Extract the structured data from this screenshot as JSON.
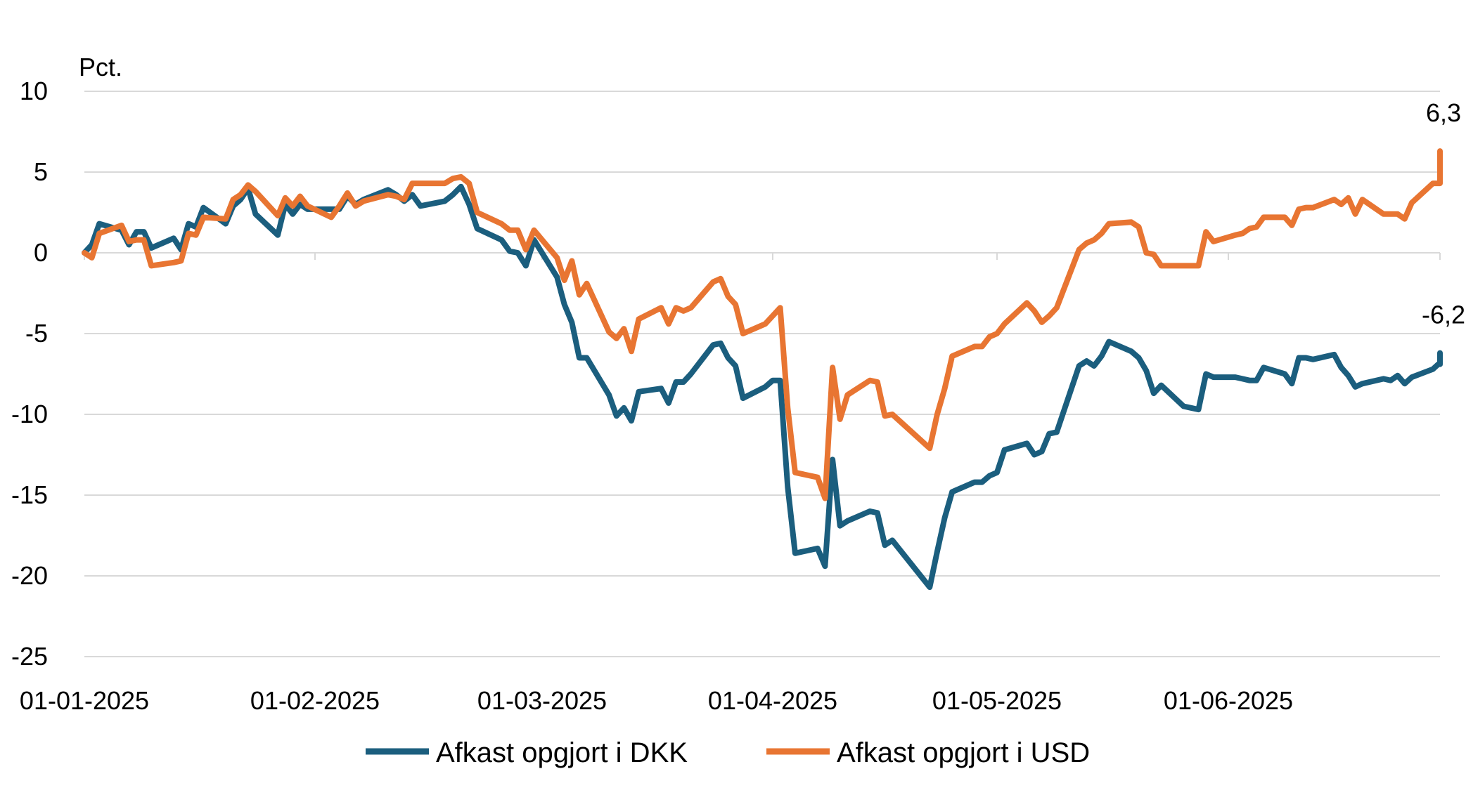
{
  "chart_data": {
    "type": "line",
    "y_unit_label": "Pct.",
    "ylim": [
      -25,
      10
    ],
    "y_ticks": [
      10,
      5,
      0,
      -5,
      -10,
      -15,
      -20,
      -25
    ],
    "x_tick_labels": [
      "01-01-2025",
      "01-02-2025",
      "01-03-2025",
      "01-04-2025",
      "01-05-2025",
      "01-06-2025"
    ],
    "x_tick_dates": [
      "2025-01-01",
      "2025-02-01",
      "2025-03-01",
      "2025-04-01",
      "2025-05-01",
      "2025-06-01"
    ],
    "x_range": [
      "2025-01-01",
      "2025-06-30"
    ],
    "grid": "horizontal",
    "legend_position": "bottom",
    "series": [
      {
        "name": "Afkast opgjort i DKK",
        "color": "#1b5e7e",
        "end_label": "-6,2",
        "points": [
          [
            "2025-01-01",
            0.0
          ],
          [
            "2025-01-02",
            0.5
          ],
          [
            "2025-01-03",
            1.8
          ],
          [
            "2025-01-06",
            1.4
          ],
          [
            "2025-01-07",
            0.5
          ],
          [
            "2025-01-08",
            1.3
          ],
          [
            "2025-01-09",
            1.3
          ],
          [
            "2025-01-10",
            0.3
          ],
          [
            "2025-01-13",
            0.9
          ],
          [
            "2025-01-14",
            0.2
          ],
          [
            "2025-01-15",
            1.8
          ],
          [
            "2025-01-16",
            1.6
          ],
          [
            "2025-01-17",
            2.8
          ],
          [
            "2025-01-20",
            1.8
          ],
          [
            "2025-01-21",
            2.9
          ],
          [
            "2025-01-22",
            3.3
          ],
          [
            "2025-01-23",
            4.0
          ],
          [
            "2025-01-24",
            2.4
          ],
          [
            "2025-01-27",
            1.1
          ],
          [
            "2025-01-28",
            3.0
          ],
          [
            "2025-01-29",
            2.4
          ],
          [
            "2025-01-30",
            3.0
          ],
          [
            "2025-01-31",
            2.7
          ],
          [
            "2025-02-03",
            2.7
          ],
          [
            "2025-02-04",
            2.7
          ],
          [
            "2025-02-05",
            3.5
          ],
          [
            "2025-02-06",
            3.0
          ],
          [
            "2025-02-07",
            3.3
          ],
          [
            "2025-02-10",
            3.9
          ],
          [
            "2025-02-11",
            3.6
          ],
          [
            "2025-02-12",
            3.2
          ],
          [
            "2025-02-13",
            3.6
          ],
          [
            "2025-02-14",
            2.9
          ],
          [
            "2025-02-17",
            3.2
          ],
          [
            "2025-02-18",
            3.6
          ],
          [
            "2025-02-19",
            4.1
          ],
          [
            "2025-02-20",
            3.0
          ],
          [
            "2025-02-21",
            1.5
          ],
          [
            "2025-02-24",
            0.8
          ],
          [
            "2025-02-25",
            0.1
          ],
          [
            "2025-02-26",
            0.0
          ],
          [
            "2025-02-27",
            -0.8
          ],
          [
            "2025-02-28",
            0.8
          ],
          [
            "2025-03-03",
            -1.5
          ],
          [
            "2025-03-04",
            -3.2
          ],
          [
            "2025-03-05",
            -4.3
          ],
          [
            "2025-03-06",
            -6.5
          ],
          [
            "2025-03-07",
            -6.5
          ],
          [
            "2025-03-10",
            -8.8
          ],
          [
            "2025-03-11",
            -10.1
          ],
          [
            "2025-03-12",
            -9.6
          ],
          [
            "2025-03-13",
            -10.4
          ],
          [
            "2025-03-14",
            -8.6
          ],
          [
            "2025-03-17",
            -8.4
          ],
          [
            "2025-03-18",
            -9.3
          ],
          [
            "2025-03-19",
            -8.0
          ],
          [
            "2025-03-20",
            -8.0
          ],
          [
            "2025-03-21",
            -7.5
          ],
          [
            "2025-03-24",
            -5.7
          ],
          [
            "2025-03-25",
            -5.6
          ],
          [
            "2025-03-26",
            -6.5
          ],
          [
            "2025-03-27",
            -7.0
          ],
          [
            "2025-03-28",
            -9.0
          ],
          [
            "2025-03-31",
            -8.3
          ],
          [
            "2025-04-01",
            -7.9
          ],
          [
            "2025-04-02",
            -7.9
          ],
          [
            "2025-04-03",
            -14.5
          ],
          [
            "2025-04-04",
            -18.6
          ],
          [
            "2025-04-07",
            -18.3
          ],
          [
            "2025-04-08",
            -19.4
          ],
          [
            "2025-04-09",
            -12.8
          ],
          [
            "2025-04-10",
            -16.9
          ],
          [
            "2025-04-11",
            -16.6
          ],
          [
            "2025-04-14",
            -16.0
          ],
          [
            "2025-04-15",
            -16.1
          ],
          [
            "2025-04-16",
            -18.1
          ],
          [
            "2025-04-17",
            -17.8
          ],
          [
            "2025-04-22",
            -20.7
          ],
          [
            "2025-04-23",
            -18.5
          ],
          [
            "2025-04-24",
            -16.4
          ],
          [
            "2025-04-25",
            -14.8
          ],
          [
            "2025-04-28",
            -14.2
          ],
          [
            "2025-04-29",
            -14.2
          ],
          [
            "2025-04-30",
            -13.8
          ],
          [
            "2025-05-01",
            -13.6
          ],
          [
            "2025-05-02",
            -12.2
          ],
          [
            "2025-05-05",
            -11.8
          ],
          [
            "2025-05-06",
            -12.5
          ],
          [
            "2025-05-07",
            -12.3
          ],
          [
            "2025-05-08",
            -11.2
          ],
          [
            "2025-05-09",
            -11.1
          ],
          [
            "2025-05-12",
            -7.0
          ],
          [
            "2025-05-13",
            -6.7
          ],
          [
            "2025-05-14",
            -7.0
          ],
          [
            "2025-05-15",
            -6.4
          ],
          [
            "2025-05-16",
            -5.5
          ],
          [
            "2025-05-19",
            -6.1
          ],
          [
            "2025-05-20",
            -6.5
          ],
          [
            "2025-05-21",
            -7.3
          ],
          [
            "2025-05-22",
            -8.7
          ],
          [
            "2025-05-23",
            -8.2
          ],
          [
            "2025-05-26",
            -9.5
          ],
          [
            "2025-05-27",
            -9.6
          ],
          [
            "2025-05-28",
            -9.7
          ],
          [
            "2025-05-29",
            -7.5
          ],
          [
            "2025-05-30",
            -7.7
          ],
          [
            "2025-06-02",
            -7.7
          ],
          [
            "2025-06-03",
            -7.8
          ],
          [
            "2025-06-04",
            -7.9
          ],
          [
            "2025-06-05",
            -7.9
          ],
          [
            "2025-06-06",
            -7.1
          ],
          [
            "2025-06-09",
            -7.5
          ],
          [
            "2025-06-10",
            -8.1
          ],
          [
            "2025-06-11",
            -6.5
          ],
          [
            "2025-06-12",
            -6.5
          ],
          [
            "2025-06-13",
            -6.6
          ],
          [
            "2025-06-16",
            -6.3
          ],
          [
            "2025-06-17",
            -7.1
          ],
          [
            "2025-06-18",
            -7.6
          ],
          [
            "2025-06-19",
            -8.3
          ],
          [
            "2025-06-20",
            -8.1
          ],
          [
            "2025-06-23",
            -7.8
          ],
          [
            "2025-06-24",
            -7.9
          ],
          [
            "2025-06-25",
            -7.6
          ],
          [
            "2025-06-26",
            -8.1
          ],
          [
            "2025-06-27",
            -7.7
          ],
          [
            "2025-06-30",
            -7.2
          ],
          [
            "2025-07-01",
            -6.8
          ],
          [
            "2025-07-02",
            -6.9
          ],
          [
            "2025-07-03",
            -6.5
          ],
          [
            "2025-07-04",
            -6.2
          ]
        ]
      },
      {
        "name": "Afkast opgjort i USD",
        "color": "#e87532",
        "end_label": "6,3",
        "points": [
          [
            "2025-01-01",
            0.0
          ],
          [
            "2025-01-02",
            -0.3
          ],
          [
            "2025-01-03",
            1.2
          ],
          [
            "2025-01-06",
            1.7
          ],
          [
            "2025-01-07",
            0.7
          ],
          [
            "2025-01-08",
            0.8
          ],
          [
            "2025-01-09",
            0.8
          ],
          [
            "2025-01-10",
            -0.8
          ],
          [
            "2025-01-13",
            -0.6
          ],
          [
            "2025-01-14",
            -0.5
          ],
          [
            "2025-01-15",
            1.2
          ],
          [
            "2025-01-16",
            1.1
          ],
          [
            "2025-01-17",
            2.2
          ],
          [
            "2025-01-20",
            2.1
          ],
          [
            "2025-01-21",
            3.3
          ],
          [
            "2025-01-22",
            3.6
          ],
          [
            "2025-01-23",
            4.2
          ],
          [
            "2025-01-24",
            3.8
          ],
          [
            "2025-01-27",
            2.3
          ],
          [
            "2025-01-28",
            3.4
          ],
          [
            "2025-01-29",
            2.9
          ],
          [
            "2025-01-30",
            3.5
          ],
          [
            "2025-01-31",
            2.9
          ],
          [
            "2025-02-03",
            2.2
          ],
          [
            "2025-02-04",
            2.9
          ],
          [
            "2025-02-05",
            3.7
          ],
          [
            "2025-02-06",
            2.9
          ],
          [
            "2025-02-07",
            3.2
          ],
          [
            "2025-02-10",
            3.6
          ],
          [
            "2025-02-11",
            3.5
          ],
          [
            "2025-02-12",
            3.3
          ],
          [
            "2025-02-13",
            4.3
          ],
          [
            "2025-02-14",
            4.3
          ],
          [
            "2025-02-17",
            4.3
          ],
          [
            "2025-02-18",
            4.6
          ],
          [
            "2025-02-19",
            4.7
          ],
          [
            "2025-02-20",
            4.3
          ],
          [
            "2025-02-21",
            2.5
          ],
          [
            "2025-02-24",
            1.8
          ],
          [
            "2025-02-25",
            1.4
          ],
          [
            "2025-02-26",
            1.4
          ],
          [
            "2025-02-27",
            0.2
          ],
          [
            "2025-02-28",
            1.4
          ],
          [
            "2025-03-03",
            -0.3
          ],
          [
            "2025-03-04",
            -1.7
          ],
          [
            "2025-03-05",
            -0.5
          ],
          [
            "2025-03-06",
            -2.6
          ],
          [
            "2025-03-07",
            -1.9
          ],
          [
            "2025-03-10",
            -4.9
          ],
          [
            "2025-03-11",
            -5.3
          ],
          [
            "2025-03-12",
            -4.7
          ],
          [
            "2025-03-13",
            -6.1
          ],
          [
            "2025-03-14",
            -4.1
          ],
          [
            "2025-03-17",
            -3.4
          ],
          [
            "2025-03-18",
            -4.4
          ],
          [
            "2025-03-19",
            -3.4
          ],
          [
            "2025-03-20",
            -3.6
          ],
          [
            "2025-03-21",
            -3.4
          ],
          [
            "2025-03-24",
            -1.8
          ],
          [
            "2025-03-25",
            -1.6
          ],
          [
            "2025-03-26",
            -2.7
          ],
          [
            "2025-03-27",
            -3.2
          ],
          [
            "2025-03-28",
            -5.0
          ],
          [
            "2025-03-31",
            -4.4
          ],
          [
            "2025-04-01",
            -3.9
          ],
          [
            "2025-04-02",
            -3.4
          ],
          [
            "2025-04-03",
            -9.6
          ],
          [
            "2025-04-04",
            -13.6
          ],
          [
            "2025-04-07",
            -13.9
          ],
          [
            "2025-04-08",
            -15.2
          ],
          [
            "2025-04-09",
            -7.1
          ],
          [
            "2025-04-10",
            -10.3
          ],
          [
            "2025-04-11",
            -8.8
          ],
          [
            "2025-04-14",
            -7.9
          ],
          [
            "2025-04-15",
            -8.0
          ],
          [
            "2025-04-16",
            -10.1
          ],
          [
            "2025-04-17",
            -10.0
          ],
          [
            "2025-04-22",
            -12.1
          ],
          [
            "2025-04-23",
            -10.0
          ],
          [
            "2025-04-24",
            -8.4
          ],
          [
            "2025-04-25",
            -6.4
          ],
          [
            "2025-04-28",
            -5.8
          ],
          [
            "2025-04-29",
            -5.8
          ],
          [
            "2025-04-30",
            -5.2
          ],
          [
            "2025-05-01",
            -5.0
          ],
          [
            "2025-05-02",
            -4.4
          ],
          [
            "2025-05-05",
            -3.1
          ],
          [
            "2025-05-06",
            -3.6
          ],
          [
            "2025-05-07",
            -4.3
          ],
          [
            "2025-05-08",
            -3.9
          ],
          [
            "2025-05-09",
            -3.4
          ],
          [
            "2025-05-12",
            0.2
          ],
          [
            "2025-05-13",
            0.6
          ],
          [
            "2025-05-14",
            0.8
          ],
          [
            "2025-05-15",
            1.2
          ],
          [
            "2025-05-16",
            1.8
          ],
          [
            "2025-05-19",
            1.9
          ],
          [
            "2025-05-20",
            1.6
          ],
          [
            "2025-05-21",
            0.0
          ],
          [
            "2025-05-22",
            -0.1
          ],
          [
            "2025-05-23",
            -0.8
          ],
          [
            "2025-05-26",
            -0.8
          ],
          [
            "2025-05-27",
            -0.8
          ],
          [
            "2025-05-28",
            -0.8
          ],
          [
            "2025-05-29",
            1.3
          ],
          [
            "2025-05-30",
            0.7
          ],
          [
            "2025-06-02",
            1.1
          ],
          [
            "2025-06-03",
            1.2
          ],
          [
            "2025-06-04",
            1.5
          ],
          [
            "2025-06-05",
            1.6
          ],
          [
            "2025-06-06",
            2.2
          ],
          [
            "2025-06-09",
            2.2
          ],
          [
            "2025-06-10",
            1.7
          ],
          [
            "2025-06-11",
            2.7
          ],
          [
            "2025-06-12",
            2.8
          ],
          [
            "2025-06-13",
            2.8
          ],
          [
            "2025-06-16",
            3.3
          ],
          [
            "2025-06-17",
            3.0
          ],
          [
            "2025-06-18",
            3.4
          ],
          [
            "2025-06-19",
            2.4
          ],
          [
            "2025-06-20",
            3.3
          ],
          [
            "2025-06-23",
            2.4
          ],
          [
            "2025-06-24",
            2.4
          ],
          [
            "2025-06-25",
            2.4
          ],
          [
            "2025-06-26",
            2.1
          ],
          [
            "2025-06-27",
            3.1
          ],
          [
            "2025-06-30",
            4.3
          ],
          [
            "2025-07-01",
            4.3
          ],
          [
            "2025-07-02",
            5.0
          ],
          [
            "2025-07-03",
            5.7
          ],
          [
            "2025-07-04",
            6.3
          ]
        ]
      }
    ]
  }
}
